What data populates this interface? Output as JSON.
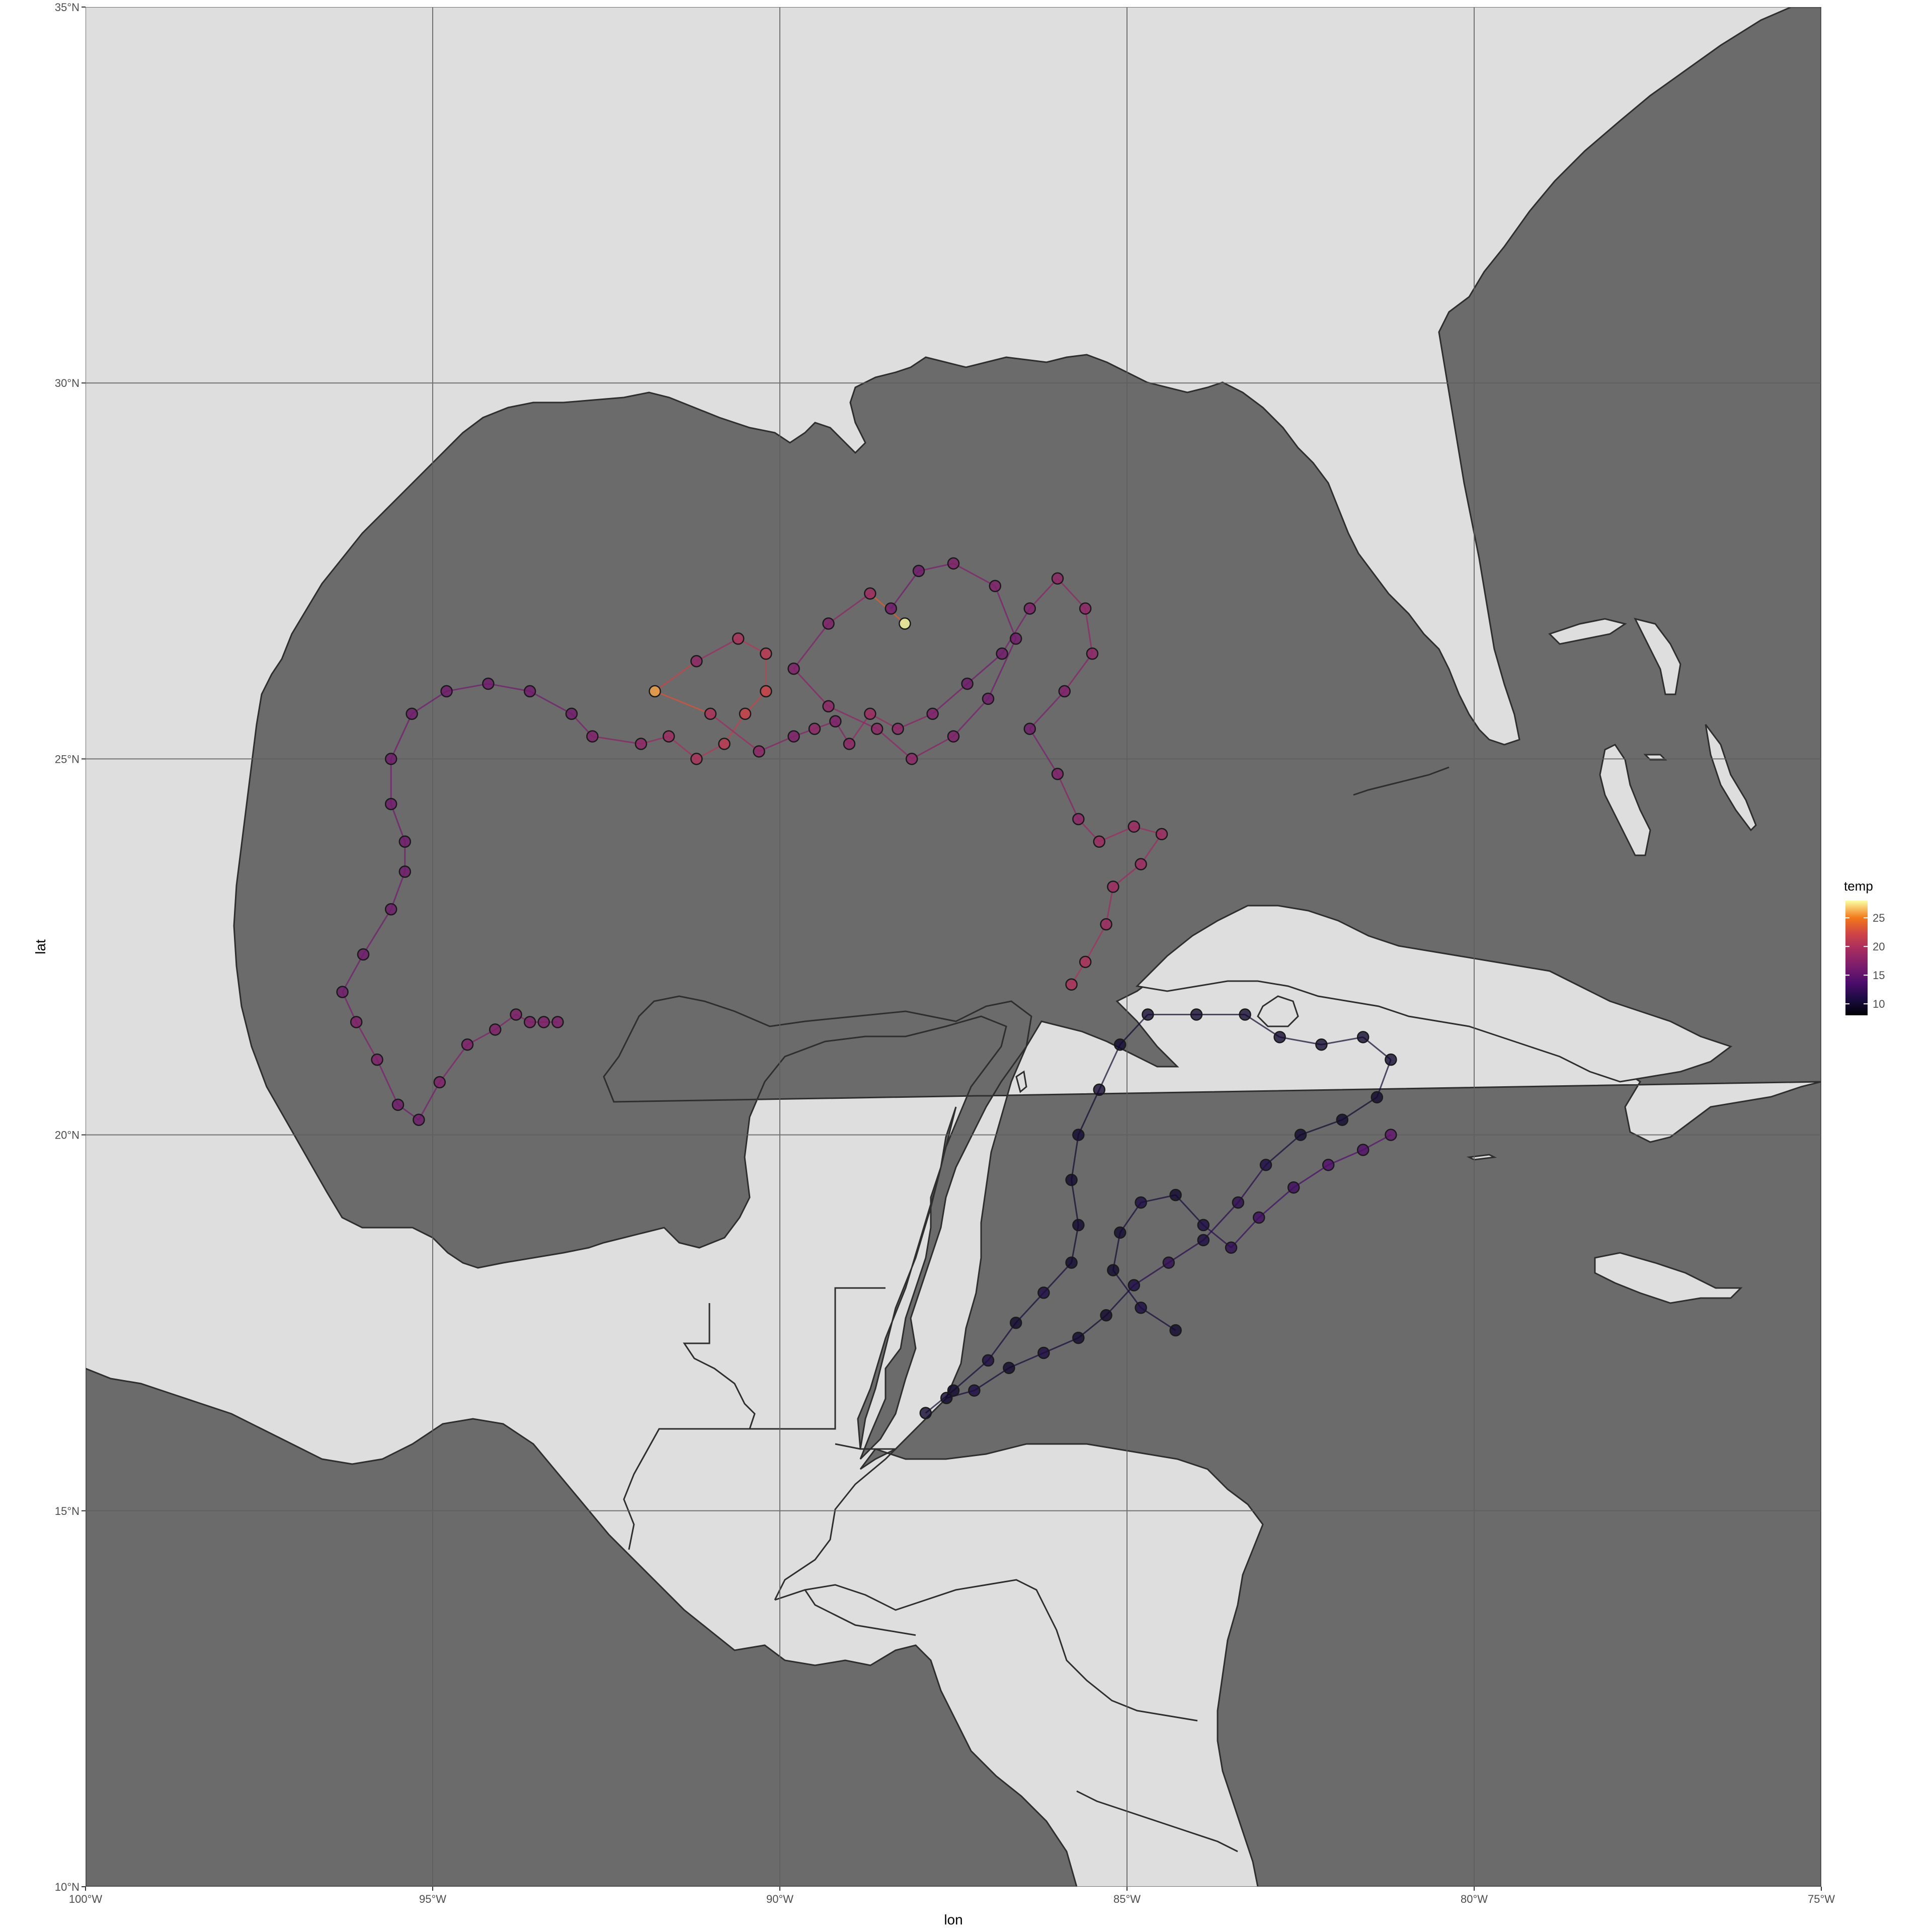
{
  "colors": {
    "land": "#dedede",
    "sea": "#6b6b6b",
    "grid": "#5f5f5f",
    "coast": "#2e2e2e",
    "tick_text": "#4d4d4d",
    "point_stroke": "#1a1a1a"
  },
  "chart_data": {
    "type": "scatter",
    "title": "",
    "xlabel": "lon",
    "ylabel": "lat",
    "xlim": [
      -100,
      -75
    ],
    "ylim": [
      10,
      35
    ],
    "x_ticks": [
      -100,
      -95,
      -90,
      -85,
      -80,
      -75
    ],
    "x_tick_labels": [
      "100°W",
      "95°W",
      "90°W",
      "85°W",
      "80°W",
      "75°W"
    ],
    "y_ticks": [
      10,
      15,
      20,
      25,
      30,
      35
    ],
    "y_tick_labels": [
      "10°N",
      "15°N",
      "20°N",
      "25°N",
      "30°N",
      "35°N"
    ],
    "grid": true,
    "legend": {
      "title": "temp",
      "position": "right",
      "scale": "inferno",
      "range": [
        8,
        28
      ],
      "breaks": [
        10,
        15,
        20,
        25
      ],
      "break_labels": [
        "10",
        "15",
        "20",
        "25"
      ]
    },
    "series": [
      {
        "tracks": [
          [
            [
              -93.2,
              21.5,
              17
            ],
            [
              -93.4,
              21.5,
              17
            ],
            [
              -93.6,
              21.5,
              17
            ],
            [
              -93.8,
              21.6,
              17
            ],
            [
              -94.1,
              21.4,
              17
            ],
            [
              -94.5,
              21.2,
              17
            ],
            [
              -94.9,
              20.7,
              17
            ],
            [
              -95.2,
              20.2,
              16
            ],
            [
              -95.5,
              20.4,
              16
            ],
            [
              -95.8,
              21.0,
              17
            ],
            [
              -96.1,
              21.5,
              17
            ],
            [
              -96.3,
              21.9,
              16
            ],
            [
              -96.0,
              22.4,
              16
            ],
            [
              -95.6,
              23.0,
              16
            ],
            [
              -95.4,
              23.5,
              16
            ],
            [
              -95.4,
              23.9,
              16
            ],
            [
              -95.6,
              24.4,
              16
            ],
            [
              -95.6,
              25.0,
              16
            ],
            [
              -95.3,
              25.6,
              16
            ],
            [
              -94.8,
              25.9,
              16
            ],
            [
              -94.2,
              26.0,
              16
            ],
            [
              -93.6,
              25.9,
              16
            ],
            [
              -93.0,
              25.6,
              16
            ],
            [
              -92.7,
              25.3,
              17
            ],
            [
              -92.0,
              25.2,
              18
            ],
            [
              -91.6,
              25.3,
              19
            ],
            [
              -91.2,
              25.0,
              20
            ],
            [
              -90.8,
              25.2,
              21
            ],
            [
              -90.5,
              25.6,
              22
            ],
            [
              -90.2,
              25.9,
              22
            ],
            [
              -90.2,
              26.4,
              21
            ],
            [
              -90.6,
              26.6,
              20
            ],
            [
              -91.2,
              26.3,
              18
            ],
            [
              -91.8,
              25.9,
              26
            ],
            [
              -91.0,
              25.6,
              20
            ],
            [
              -90.3,
              25.1,
              18
            ],
            [
              -89.8,
              25.3,
              17
            ],
            [
              -89.5,
              25.4,
              18
            ],
            [
              -89.2,
              25.5,
              17
            ],
            [
              -89.0,
              25.2,
              18
            ],
            [
              -88.7,
              25.6,
              19
            ],
            [
              -88.3,
              25.4,
              18
            ],
            [
              -87.8,
              25.6,
              17
            ],
            [
              -87.3,
              26.0,
              16
            ],
            [
              -86.8,
              26.4,
              16
            ],
            [
              -86.4,
              27.0,
              17
            ],
            [
              -86.0,
              27.4,
              18
            ],
            [
              -85.6,
              27.0,
              18
            ],
            [
              -85.5,
              26.4,
              18
            ],
            [
              -85.9,
              25.9,
              17
            ],
            [
              -86.4,
              25.4,
              16
            ],
            [
              -86.0,
              24.8,
              17
            ],
            [
              -85.7,
              24.2,
              18
            ],
            [
              -85.4,
              23.9,
              19
            ],
            [
              -84.9,
              24.1,
              19
            ],
            [
              -84.5,
              24.0,
              19
            ],
            [
              -84.8,
              23.6,
              19
            ],
            [
              -85.2,
              23.3,
              19
            ],
            [
              -85.3,
              22.8,
              19
            ],
            [
              -85.6,
              22.3,
              20
            ],
            [
              -85.8,
              22.0,
              20
            ]
          ],
          [
            [
              -88.2,
              26.8,
              28
            ],
            [
              -88.7,
              27.2,
              19
            ],
            [
              -89.3,
              26.8,
              17
            ],
            [
              -89.8,
              26.2,
              17
            ],
            [
              -89.3,
              25.7,
              18
            ],
            [
              -88.6,
              25.4,
              18
            ],
            [
              -88.1,
              25.0,
              18
            ],
            [
              -87.5,
              25.3,
              17
            ],
            [
              -87.0,
              25.8,
              16
            ],
            [
              -86.6,
              26.6,
              16
            ],
            [
              -86.9,
              27.3,
              17
            ],
            [
              -87.5,
              27.6,
              17
            ],
            [
              -88.0,
              27.5,
              16
            ],
            [
              -88.4,
              27.0,
              16
            ]
          ],
          [
            [
              -87.9,
              16.3,
              10
            ],
            [
              -87.5,
              16.6,
              10
            ],
            [
              -87.0,
              17.0,
              11
            ],
            [
              -86.6,
              17.5,
              10
            ],
            [
              -86.2,
              17.9,
              11
            ],
            [
              -85.8,
              18.3,
              10
            ],
            [
              -85.7,
              18.8,
              10
            ],
            [
              -85.8,
              19.4,
              10
            ],
            [
              -85.7,
              20.0,
              10
            ],
            [
              -85.4,
              20.6,
              10
            ],
            [
              -85.1,
              21.2,
              10
            ],
            [
              -84.7,
              21.6,
              10
            ],
            [
              -84.0,
              21.6,
              10
            ],
            [
              -83.3,
              21.6,
              10
            ],
            [
              -82.8,
              21.3,
              10
            ],
            [
              -82.2,
              21.2,
              10
            ],
            [
              -81.6,
              21.3,
              10
            ],
            [
              -81.2,
              21.0,
              10
            ],
            [
              -81.4,
              20.5,
              10
            ],
            [
              -81.9,
              20.2,
              10
            ],
            [
              -82.5,
              20.0,
              10
            ],
            [
              -83.0,
              19.6,
              11
            ],
            [
              -83.4,
              19.1,
              12
            ],
            [
              -83.9,
              18.6,
              11
            ],
            [
              -84.4,
              18.3,
              12
            ],
            [
              -84.9,
              18.0,
              11
            ],
            [
              -85.3,
              17.6,
              10
            ],
            [
              -85.7,
              17.3,
              10
            ],
            [
              -86.2,
              17.1,
              11
            ],
            [
              -86.7,
              16.9,
              10
            ],
            [
              -87.2,
              16.6,
              11
            ],
            [
              -87.6,
              16.5,
              10
            ]
          ],
          [
            [
              -84.3,
              17.4,
              10
            ],
            [
              -84.8,
              17.7,
              11
            ],
            [
              -85.2,
              18.2,
              10
            ],
            [
              -85.1,
              18.7,
              10
            ],
            [
              -84.8,
              19.1,
              11
            ],
            [
              -84.3,
              19.2,
              10
            ],
            [
              -83.9,
              18.8,
              11
            ],
            [
              -83.5,
              18.5,
              12
            ],
            [
              -83.1,
              18.9,
              13
            ],
            [
              -82.6,
              19.3,
              13
            ],
            [
              -82.1,
              19.6,
              14
            ],
            [
              -81.6,
              19.8,
              14
            ],
            [
              -81.2,
              20.0,
              15
            ]
          ]
        ]
      }
    ]
  }
}
